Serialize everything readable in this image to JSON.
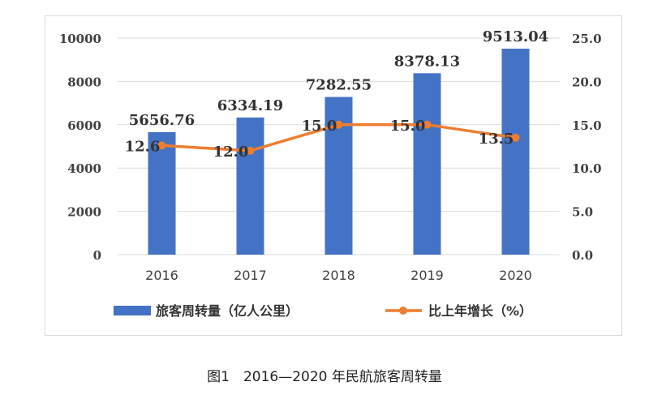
{
  "caption": "图1　2016—2020 年民航旅客周转量",
  "chart_data": {
    "type": "bar",
    "categories": [
      "2016",
      "2017",
      "2018",
      "2019",
      "2020"
    ],
    "series": [
      {
        "name": "旅客周转量（亿人公里）",
        "type": "bar",
        "axis": "left",
        "color": "#4472c4",
        "values": [
          5656.76,
          6334.19,
          7282.55,
          8378.13,
          9513.04
        ],
        "labels": [
          "5656.76",
          "6334.19",
          "7282.55",
          "8378.13",
          "9513.04"
        ]
      },
      {
        "name": "比上年增长（%）",
        "type": "line",
        "axis": "right",
        "color": "#ed7d31",
        "values": [
          12.6,
          12.0,
          15.0,
          15.0,
          13.5
        ],
        "labels": [
          "12.6",
          "12.0",
          "15.0",
          "15.0",
          "13.5"
        ]
      }
    ],
    "y_left": {
      "range": [
        0,
        10000
      ],
      "ticks": [
        "0",
        "2000",
        "4000",
        "6000",
        "8000",
        "10000"
      ]
    },
    "y_right": {
      "range": [
        0,
        25
      ],
      "ticks": [
        "0.0",
        "5.0",
        "10.0",
        "15.0",
        "20.0",
        "25.0"
      ]
    },
    "grid": true,
    "legend_position": "bottom"
  }
}
